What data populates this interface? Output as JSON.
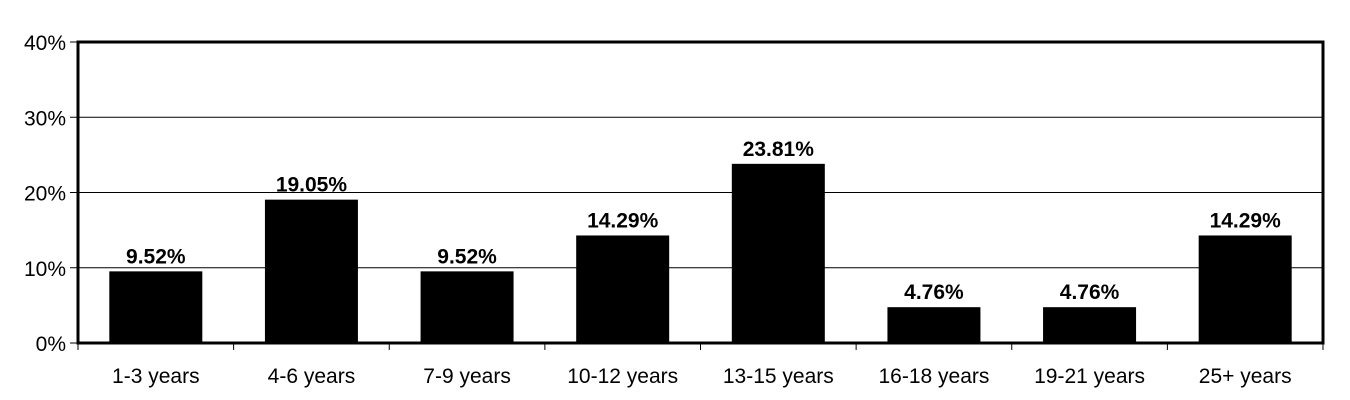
{
  "chart_data": {
    "type": "bar",
    "title": "",
    "xlabel": "",
    "ylabel": "",
    "categories": [
      "1-3 years",
      "4-6 years",
      "7-9 years",
      "10-12 years",
      "13-15 years",
      "16-18 years",
      "19-21 years",
      "25+ years"
    ],
    "values": [
      9.52,
      19.05,
      9.52,
      14.29,
      23.81,
      4.76,
      4.76,
      14.29
    ],
    "value_labels": [
      "9.52%",
      "19.05%",
      "9.52%",
      "14.29%",
      "23.81%",
      "4.76%",
      "4.76%",
      "14.29%"
    ],
    "ylim": [
      0,
      40
    ],
    "yticks": [
      0,
      10,
      20,
      30,
      40
    ],
    "ytick_labels": [
      "0%",
      "10%",
      "20%",
      "30%",
      "40%"
    ],
    "grid": "horizontal",
    "legend": "none",
    "bar_color": "#000000",
    "grid_color": "#000000"
  }
}
